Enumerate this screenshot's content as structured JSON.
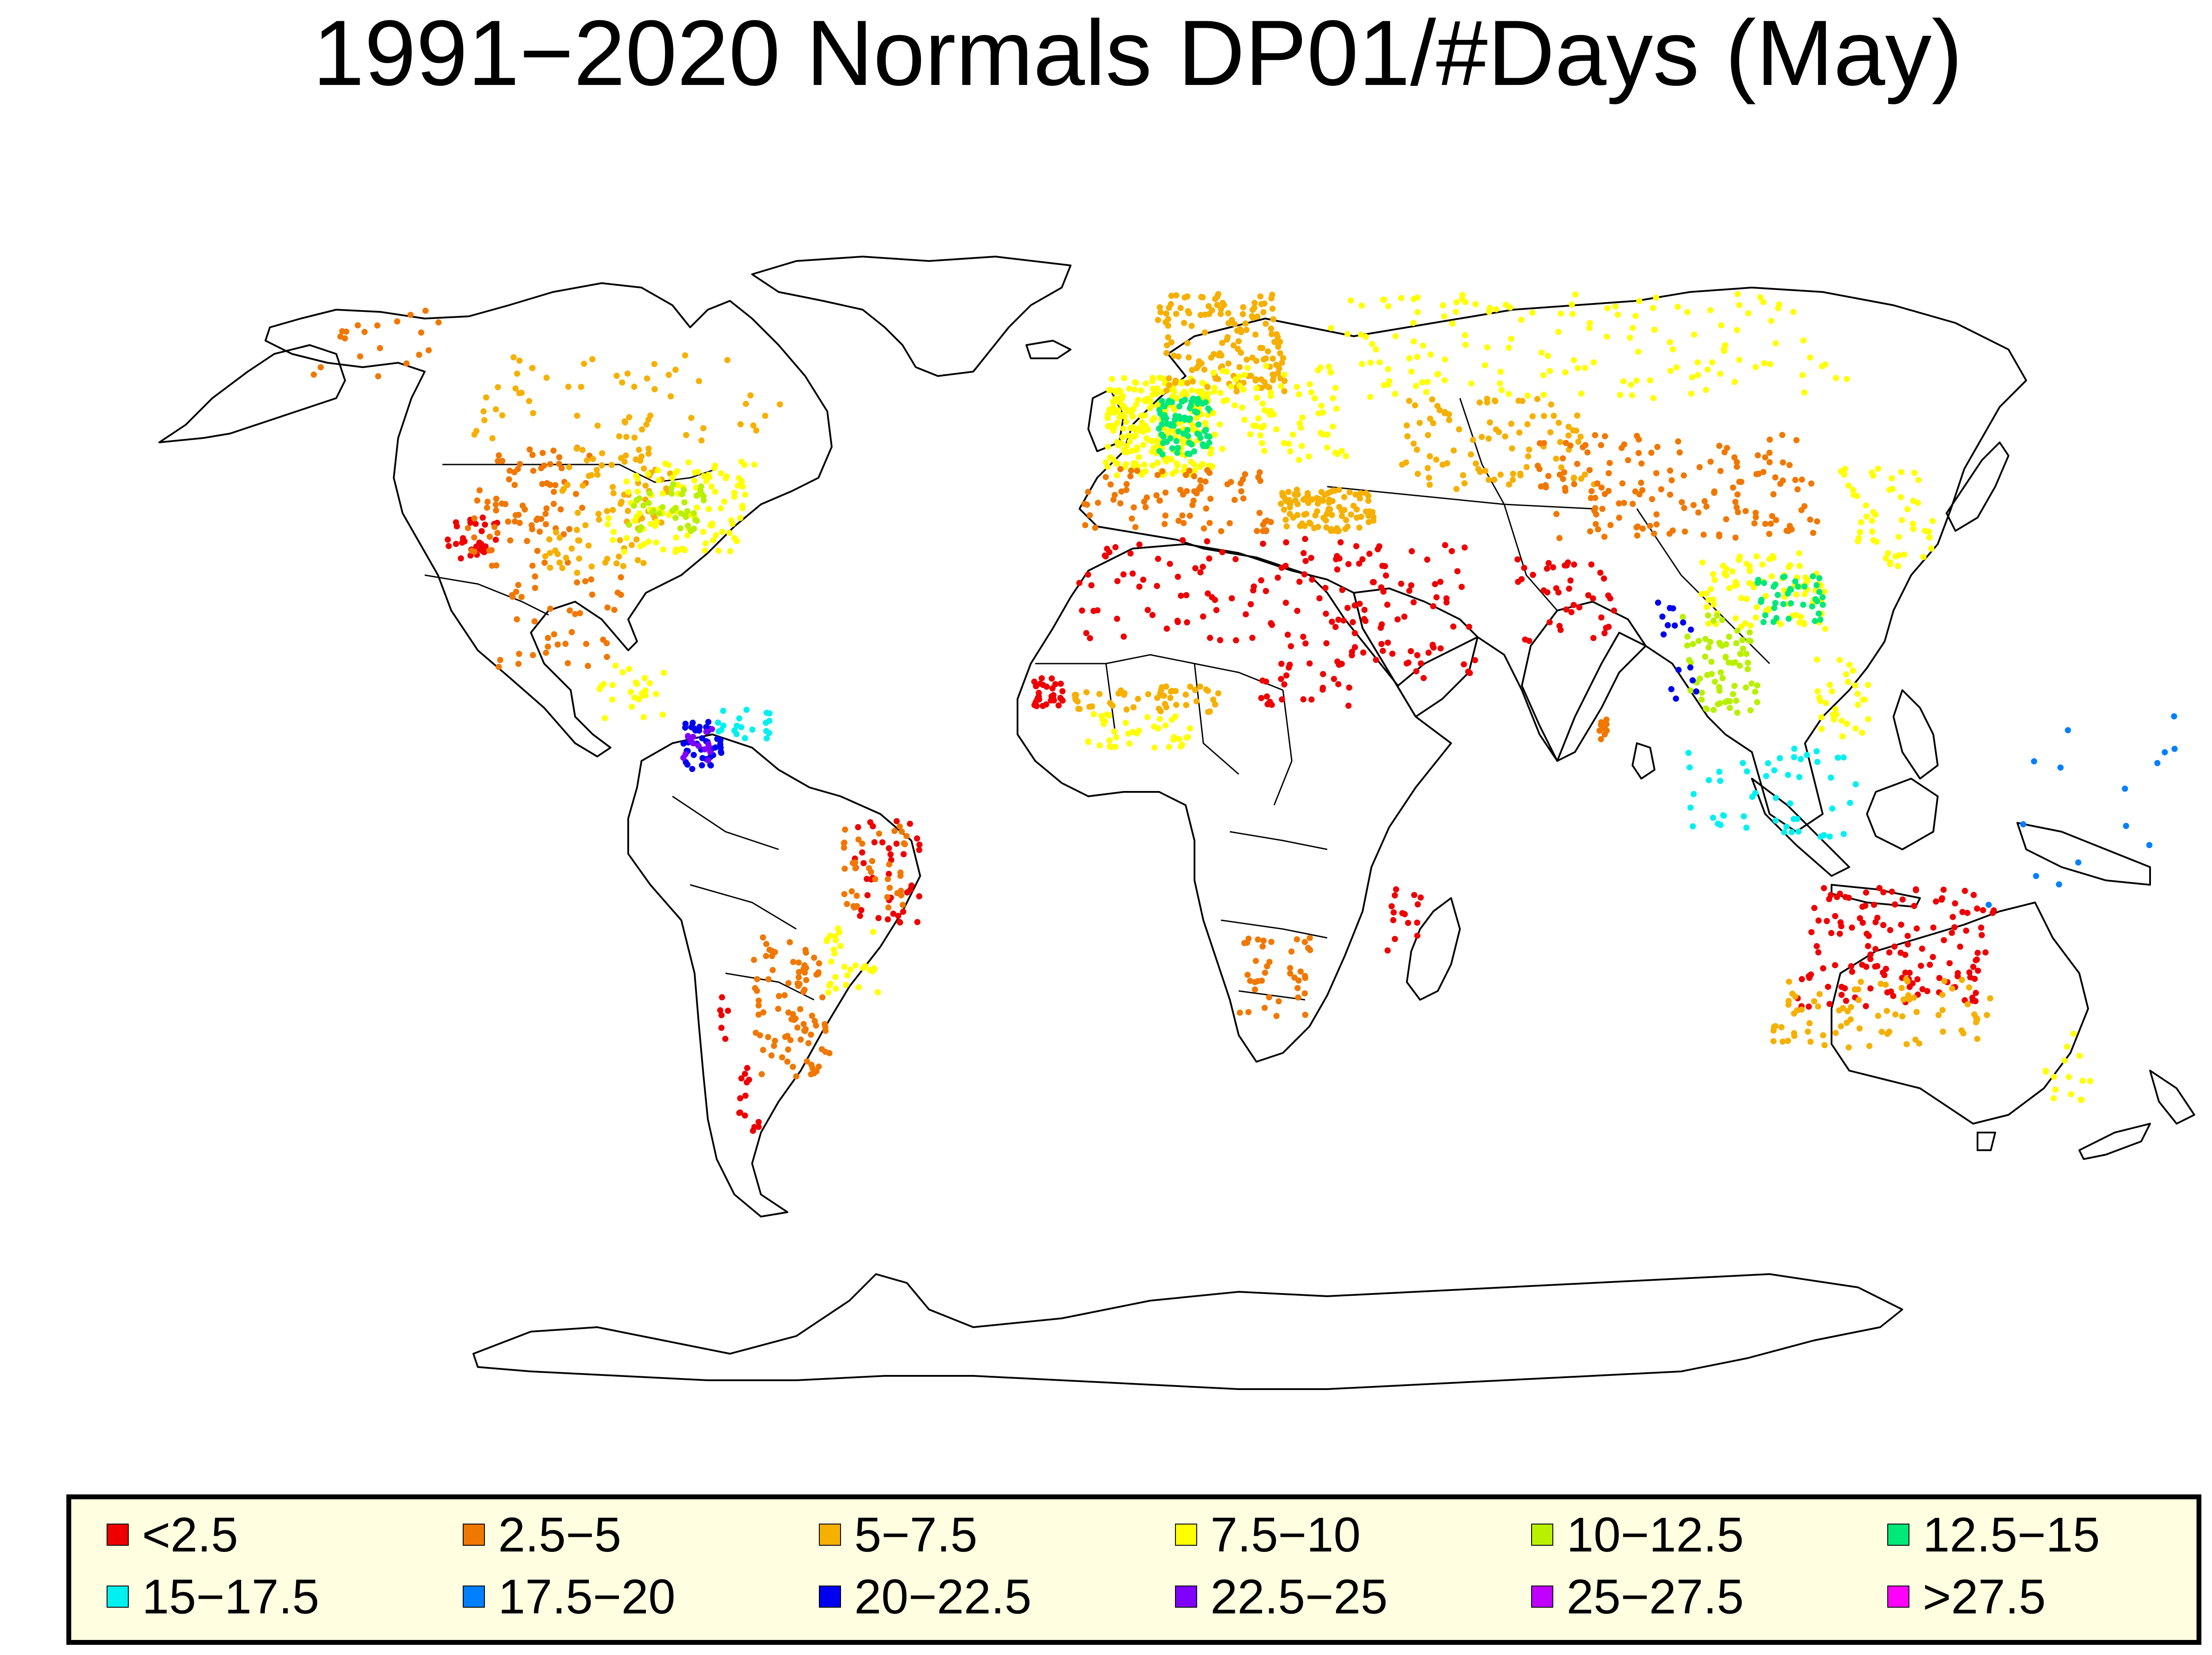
{
  "title": "1991−2020 Normals DP01/#Days (May)",
  "legend": [
    {
      "label": "<2.5",
      "color": "#ee0000"
    },
    {
      "label": "2.5−5",
      "color": "#f07800"
    },
    {
      "label": "5−7.5",
      "color": "#f5b000"
    },
    {
      "label": "7.5−10",
      "color": "#ffff00"
    },
    {
      "label": "10−12.5",
      "color": "#b8f000"
    },
    {
      "label": "12.5−15",
      "color": "#00e878"
    },
    {
      "label": "15−17.5",
      "color": "#00f0f0"
    },
    {
      "label": "17.5−20",
      "color": "#0080ff"
    },
    {
      "label": "20−22.5",
      "color": "#0000f0"
    },
    {
      "label": "22.5−25",
      "color": "#8000ff"
    },
    {
      "label": "25−27.5",
      "color": "#c000ff"
    },
    {
      "label": ">27.5",
      "color": "#ff00ff"
    }
  ],
  "map_data": {
    "type": "station-map",
    "projection": "robinson",
    "clusters": [
      {
        "region": "western-us-coast",
        "lon_range": [
          -124,
          -114
        ],
        "lat_range": [
          32,
          38
        ],
        "class": 0,
        "n": 30
      },
      {
        "region": "western-us",
        "lon_range": [
          -120,
          -100
        ],
        "lat_range": [
          31,
          48
        ],
        "class": 1,
        "n": 80
      },
      {
        "region": "central-us",
        "lon_range": [
          -105,
          -85
        ],
        "lat_range": [
          30,
          48
        ],
        "class": 2,
        "n": 90
      },
      {
        "region": "eastern-us",
        "lon_range": [
          -95,
          -70
        ],
        "lat_range": [
          33,
          46
        ],
        "class": 3,
        "n": 110
      },
      {
        "region": "ohio-valley",
        "lon_range": [
          -92,
          -78
        ],
        "lat_range": [
          36,
          43
        ],
        "class": 4,
        "n": 40
      },
      {
        "region": "canada",
        "lon_range": [
          -125,
          -65
        ],
        "lat_range": [
          49,
          62
        ],
        "class": 2,
        "n": 60
      },
      {
        "region": "alaska",
        "lon_range": [
          -165,
          -140
        ],
        "lat_range": [
          58,
          68
        ],
        "class": 1,
        "n": 20
      },
      {
        "region": "mexico",
        "lon_range": [
          -110,
          -90
        ],
        "lat_range": [
          16,
          30
        ],
        "class": 1,
        "n": 40
      },
      {
        "region": "central-america",
        "lon_range": [
          -92,
          -80
        ],
        "lat_range": [
          9,
          17
        ],
        "class": 3,
        "n": 25
      },
      {
        "region": "colombia",
        "lon_range": [
          -77,
          -70
        ],
        "lat_range": [
          2,
          9
        ],
        "class": 8,
        "n": 40
      },
      {
        "region": "colombia-wet",
        "lon_range": [
          -78,
          -72
        ],
        "lat_range": [
          3,
          8
        ],
        "class": 9,
        "n": 15
      },
      {
        "region": "venezuela",
        "lon_range": [
          -72,
          -62
        ],
        "lat_range": [
          6,
          11
        ],
        "class": 6,
        "n": 20
      },
      {
        "region": "ne-brazil",
        "lon_range": [
          -48,
          -36
        ],
        "lat_range": [
          -20,
          -5
        ],
        "class": 0,
        "n": 40
      },
      {
        "region": "e-brazil",
        "lon_range": [
          -50,
          -38
        ],
        "lat_range": [
          -18,
          -6
        ],
        "class": 1,
        "n": 40
      },
      {
        "region": "argentina",
        "lon_range": [
          -68,
          -55
        ],
        "lat_range": [
          -42,
          -22
        ],
        "class": 1,
        "n": 90
      },
      {
        "region": "s-brazil",
        "lon_range": [
          -55,
          -45
        ],
        "lat_range": [
          -30,
          -20
        ],
        "class": 3,
        "n": 30
      },
      {
        "region": "chile",
        "lon_range": [
          -74,
          -70
        ],
        "lat_range": [
          -50,
          -30
        ],
        "class": 0,
        "n": 20
      },
      {
        "region": "europe-west",
        "lon_range": [
          -5,
          15
        ],
        "lat_range": [
          44,
          58
        ],
        "class": 3,
        "n": 250
      },
      {
        "region": "germany",
        "lon_range": [
          5,
          15
        ],
        "lat_range": [
          47,
          55
        ],
        "class": 5,
        "n": 80
      },
      {
        "region": "scandinavia",
        "lon_range": [
          5,
          30
        ],
        "lat_range": [
          56,
          70
        ],
        "class": 2,
        "n": 150
      },
      {
        "region": "eastern-europe",
        "lon_range": [
          15,
          40
        ],
        "lat_range": [
          46,
          60
        ],
        "class": 3,
        "n": 80
      },
      {
        "region": "mediterranean",
        "lon_range": [
          -9,
          25
        ],
        "lat_range": [
          36,
          45
        ],
        "class": 1,
        "n": 80
      },
      {
        "region": "turkey",
        "lon_range": [
          27,
          44
        ],
        "lat_range": [
          36,
          42
        ],
        "class": 2,
        "n": 100
      },
      {
        "region": "russia",
        "lon_range": [
          40,
          140
        ],
        "lat_range": [
          55,
          70
        ],
        "class": 3,
        "n": 150
      },
      {
        "region": "kazakhstan",
        "lon_range": [
          50,
          85
        ],
        "lat_range": [
          42,
          55
        ],
        "class": 2,
        "n": 90
      },
      {
        "region": "north-africa",
        "lon_range": [
          -10,
          35
        ],
        "lat_range": [
          20,
          35
        ],
        "class": 0,
        "n": 80
      },
      {
        "region": "arabia",
        "lon_range": [
          35,
          60
        ],
        "lat_range": [
          15,
          35
        ],
        "class": 0,
        "n": 80
      },
      {
        "region": "west-africa-coast",
        "lon_range": [
          -17,
          -12
        ],
        "lat_range": [
          11,
          15
        ],
        "class": 0,
        "n": 30
      },
      {
        "region": "sahel",
        "lon_range": [
          -10,
          15
        ],
        "lat_range": [
          10,
          14
        ],
        "class": 2,
        "n": 50
      },
      {
        "region": "gulf-of-guinea",
        "lon_range": [
          -8,
          10
        ],
        "lat_range": [
          5,
          10
        ],
        "class": 3,
        "n": 40
      },
      {
        "region": "sudan",
        "lon_range": [
          22,
          38
        ],
        "lat_range": [
          10,
          20
        ],
        "class": 0,
        "n": 30
      },
      {
        "region": "china-north",
        "lon_range": [
          75,
          125
        ],
        "lat_range": [
          35,
          50
        ],
        "class": 1,
        "n": 150
      },
      {
        "region": "china-south",
        "lon_range": [
          100,
          122
        ],
        "lat_range": [
          22,
          33
        ],
        "class": 3,
        "n": 90
      },
      {
        "region": "se-china",
        "lon_range": [
          110,
          122
        ],
        "lat_range": [
          23,
          30
        ],
        "class": 5,
        "n": 40
      },
      {
        "region": "japan",
        "lon_range": [
          130,
          145
        ],
        "lat_range": [
          31,
          45
        ],
        "class": 3,
        "n": 50
      },
      {
        "region": "india-nw",
        "lon_range": [
          68,
          85
        ],
        "lat_range": [
          20,
          32
        ],
        "class": 0,
        "n": 40
      },
      {
        "region": "indochina",
        "lon_range": [
          96,
          108
        ],
        "lat_range": [
          10,
          24
        ],
        "class": 4,
        "n": 70
      },
      {
        "region": "myanmar",
        "lon_range": [
          92,
          98
        ],
        "lat_range": [
          12,
          26
        ],
        "class": 8,
        "n": 15
      },
      {
        "region": "philippines",
        "lon_range": [
          118,
          127
        ],
        "lat_range": [
          6,
          18
        ],
        "class": 3,
        "n": 30
      },
      {
        "region": "indonesia",
        "lon_range": [
          95,
          125
        ],
        "lat_range": [
          -8,
          5
        ],
        "class": 6,
        "n": 50
      },
      {
        "region": "australia-interior",
        "lon_range": [
          118,
          150
        ],
        "lat_range": [
          -32,
          -15
        ],
        "class": 0,
        "n": 140
      },
      {
        "region": "australia-coast",
        "lon_range": [
          115,
          153
        ],
        "lat_range": [
          -38,
          -28
        ],
        "class": 2,
        "n": 80
      },
      {
        "region": "new-zealand",
        "lon_range": [
          167,
          178
        ],
        "lat_range": [
          -46,
          -35
        ],
        "class": 3,
        "n": 15
      },
      {
        "region": "south-africa",
        "lon_range": [
          18,
          32
        ],
        "lat_range": [
          -34,
          -22
        ],
        "class": 1,
        "n": 40
      },
      {
        "region": "madagascar",
        "lon_range": [
          44,
          50
        ],
        "lat_range": [
          -24,
          -14
        ],
        "class": 0,
        "n": 15
      },
      {
        "region": "sri-lanka",
        "lon_range": [
          79.8,
          81.5
        ],
        "lat_range": [
          6.2,
          9.5
        ],
        "class": 1,
        "n": 10
      },
      {
        "region": "pacific-islands",
        "lon_range": [
          140,
          180
        ],
        "lat_range": [
          -20,
          10
        ],
        "class": 7,
        "n": 15
      }
    ]
  }
}
